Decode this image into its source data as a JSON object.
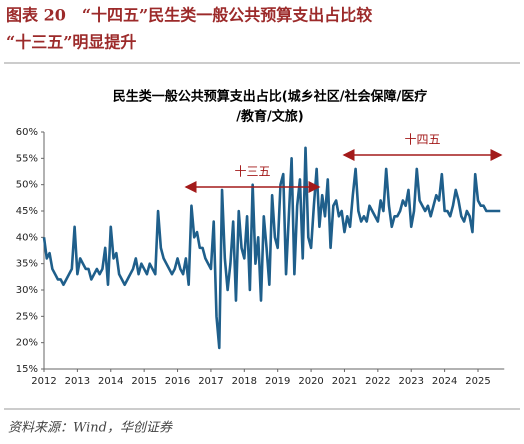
{
  "header": {
    "title": [
      "图表 20　“十四五”民生类一般公共预算支出占比较",
      "“十三五”明显提升"
    ]
  },
  "chart_data": {
    "type": "line",
    "title": [
      "民生类一般公共预算支出占比(城乡社区/社会保障/医疗",
      "/教育/文旅)"
    ],
    "categories": [
      "2012",
      null,
      null,
      null,
      null,
      null,
      null,
      null,
      null,
      null,
      null,
      null,
      "2013",
      null,
      null,
      null,
      null,
      null,
      null,
      null,
      null,
      null,
      null,
      null,
      "2014",
      null,
      null,
      null,
      null,
      null,
      null,
      null,
      null,
      null,
      null,
      null,
      "2015",
      null,
      null,
      null,
      null,
      null,
      null,
      null,
      null,
      null,
      null,
      null,
      "2016",
      null,
      null,
      null,
      null,
      null,
      null,
      null,
      null,
      null,
      null,
      null,
      "2017",
      null,
      null,
      null,
      null,
      null,
      null,
      null,
      null,
      null,
      null,
      null,
      "2018",
      null,
      null,
      null,
      null,
      null,
      null,
      null,
      null,
      null,
      null,
      null,
      "2019",
      null,
      null,
      null,
      null,
      null,
      null,
      null,
      null,
      null,
      null,
      null,
      "2020",
      null,
      null,
      null,
      null,
      null,
      null,
      null,
      null,
      null,
      null,
      null,
      "2021",
      null,
      null,
      null,
      null,
      null,
      null,
      null,
      null,
      null,
      null,
      null,
      "2022",
      null,
      null,
      null,
      null,
      null,
      null,
      null,
      null,
      null,
      null,
      null,
      "2023",
      null,
      null,
      null,
      null,
      null,
      null,
      null,
      null,
      null,
      null,
      null,
      "2024",
      null,
      null,
      null,
      null,
      null,
      null,
      null,
      null,
      null,
      null,
      null,
      "2025",
      null,
      null,
      null,
      null,
      null,
      null,
      null,
      null
    ],
    "values": [
      40,
      36,
      37,
      34,
      33,
      32,
      32,
      31,
      32,
      33,
      34,
      42,
      33,
      36,
      35,
      34,
      34,
      32,
      33,
      34,
      33,
      34,
      38,
      31,
      42,
      36,
      37,
      33,
      32,
      31,
      32,
      33,
      34,
      36,
      33,
      35,
      34,
      33,
      35,
      34,
      33,
      45,
      38,
      36,
      35,
      34,
      33,
      34,
      36,
      34,
      33,
      36,
      31,
      46,
      40,
      41,
      38,
      38,
      36,
      35,
      34,
      43,
      25,
      19,
      49,
      36,
      30,
      35,
      43,
      28,
      45,
      38,
      36,
      44,
      30,
      50,
      35,
      40,
      28,
      44,
      38,
      31,
      48,
      40,
      38,
      50,
      52,
      33,
      44,
      55,
      33,
      46,
      51,
      36,
      57,
      40,
      38,
      46,
      53,
      42,
      48,
      44,
      51,
      38,
      46,
      47,
      44,
      45,
      41,
      44,
      42,
      48,
      53,
      45,
      43,
      44,
      43,
      46,
      45,
      44,
      43,
      47,
      45,
      53,
      46,
      42,
      44,
      44,
      45,
      47,
      46,
      49,
      42,
      45,
      53,
      47,
      46,
      45,
      46,
      44,
      46,
      48,
      47,
      52,
      45,
      45,
      44,
      46,
      49,
      47,
      44,
      43,
      45,
      44,
      41,
      52,
      47,
      46,
      46,
      45,
      45,
      45,
      45,
      45,
      45
    ],
    "color": "#1f5f8b",
    "ylim": [
      15,
      60
    ],
    "yticks": [
      {
        "value": 15,
        "label": "15%"
      },
      {
        "value": 20,
        "label": "20%"
      },
      {
        "value": 25,
        "label": "25%"
      },
      {
        "value": 30,
        "label": "30%"
      },
      {
        "value": 35,
        "label": "35%"
      },
      {
        "value": 40,
        "label": "40%"
      },
      {
        "value": 45,
        "label": "45%"
      },
      {
        "value": 50,
        "label": "50%"
      },
      {
        "value": 55,
        "label": "55%"
      },
      {
        "value": 60,
        "label": "60%"
      }
    ],
    "annotations": [
      "十三五",
      "十四五"
    ],
    "annotation_color": "#a31a1a"
  },
  "source": "资料来源：Wind，华创证券"
}
